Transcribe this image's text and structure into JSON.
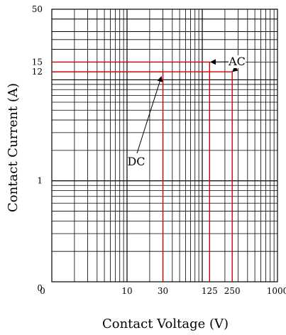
{
  "chart_data": {
    "type": "line",
    "title": "",
    "xlabel": "Contact Voltage (V)",
    "ylabel": "Contact Current (A)",
    "x_scale": "log",
    "y_scale": "log",
    "xlim": [
      1,
      1000
    ],
    "ylim": [
      0.1,
      50
    ],
    "grid": true,
    "x_tick_labels": [
      {
        "value": 1,
        "label": "0"
      },
      {
        "value": 10,
        "label": "10"
      },
      {
        "value": 30,
        "label": "30"
      },
      {
        "value": 125,
        "label": "125"
      },
      {
        "value": 250,
        "label": "250"
      },
      {
        "value": 1000,
        "label": "1000"
      }
    ],
    "y_tick_labels": [
      {
        "value": 0.1,
        "label": "0"
      },
      {
        "value": 1,
        "label": "1"
      },
      {
        "value": 12,
        "label": "12"
      },
      {
        "value": 15,
        "label": "15"
      },
      {
        "value": 50,
        "label": "50"
      }
    ],
    "series": [
      {
        "name": "AC",
        "color": "#cc0000",
        "points": [
          [
            1,
            15
          ],
          [
            125,
            15
          ],
          [
            125,
            0.1
          ]
        ]
      },
      {
        "name": "AC",
        "color": "#cc0000",
        "points": [
          [
            1,
            12
          ],
          [
            250,
            12
          ],
          [
            250,
            0.1
          ]
        ]
      },
      {
        "name": "DC",
        "color": "#cc0000",
        "points": [
          [
            1,
            12
          ],
          [
            30,
            12
          ],
          [
            30,
            0.1
          ]
        ]
      }
    ],
    "annotations": [
      {
        "text": "AC",
        "targets": [
          [
            125,
            15
          ],
          [
            250,
            12
          ]
        ]
      },
      {
        "text": "DC",
        "targets": [
          [
            30,
            12
          ]
        ]
      }
    ]
  }
}
